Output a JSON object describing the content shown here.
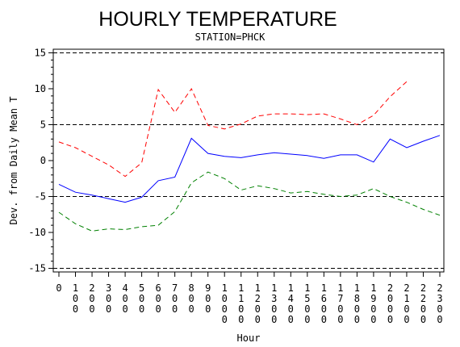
{
  "chart_data": {
    "type": "line",
    "title": "HOURLY TEMPERATURE",
    "subtitle": "STATION=PHCK",
    "xlabel": "Hour",
    "ylabel": "Dev. from Daily Mean T",
    "x": [
      0,
      100,
      200,
      300,
      400,
      500,
      600,
      700,
      800,
      900,
      1000,
      1100,
      1200,
      1300,
      1400,
      1500,
      1600,
      1700,
      1800,
      1900,
      2000,
      2100,
      2200,
      2300
    ],
    "xtick_labels": [
      "0",
      "100",
      "200",
      "300",
      "400",
      "500",
      "600",
      "700",
      "800",
      "900",
      "1000",
      "1100",
      "1200",
      "1300",
      "1400",
      "1500",
      "1600",
      "1700",
      "1800",
      "1900",
      "2000",
      "2100",
      "2200",
      "2300"
    ],
    "xlim": [
      0,
      2300
    ],
    "ylim": [
      -15.5,
      15.5
    ],
    "yticks": [
      -15,
      -10,
      -5,
      0,
      5,
      10,
      15
    ],
    "reference_lines": [
      -15,
      -5,
      5,
      15
    ],
    "grid": false,
    "series": [
      {
        "color": "#ff0000",
        "dash": "dashed",
        "values": [
          2.6,
          1.8,
          0.6,
          -0.6,
          -2.2,
          -0.3,
          9.9,
          6.7,
          10.0,
          4.9,
          4.4,
          5.1,
          6.2,
          6.5,
          6.5,
          6.4,
          6.5,
          5.8,
          5.0,
          6.3,
          8.9,
          11.0,
          null,
          null
        ]
      },
      {
        "color": "#0000ff",
        "dash": "solid",
        "values": [
          -3.3,
          -4.4,
          -4.8,
          -5.3,
          -5.8,
          -5.1,
          -2.8,
          -2.3,
          3.1,
          1.0,
          0.6,
          0.4,
          0.8,
          1.1,
          0.9,
          0.7,
          0.3,
          0.8,
          0.8,
          -0.2,
          3.0,
          1.8,
          2.7,
          3.5
        ]
      },
      {
        "color": "#008000",
        "dash": "dashed",
        "values": [
          -7.2,
          -8.8,
          -9.8,
          -9.5,
          -9.6,
          -9.2,
          -9.0,
          -7.1,
          -3.1,
          -1.6,
          -2.5,
          -4.1,
          -3.5,
          -3.9,
          -4.5,
          -4.3,
          -4.7,
          -5.0,
          -4.8,
          -3.9,
          -5.0,
          -5.8,
          -6.8,
          -7.6
        ]
      }
    ]
  }
}
